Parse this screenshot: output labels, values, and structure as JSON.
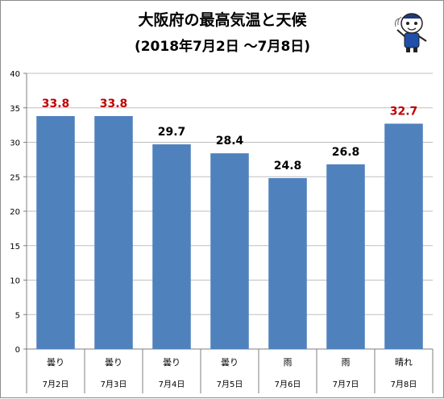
{
  "chart_data": {
    "type": "bar",
    "title": "大阪府の最高気温と天候",
    "subtitle": "(2018年7月2日 〜7月8日)",
    "categories": [
      "7月2日",
      "7月3日",
      "7月4日",
      "7月5日",
      "7月6日",
      "7月7日",
      "7月8日"
    ],
    "weather": [
      "曇り",
      "曇り",
      "曇り",
      "曇り",
      "雨",
      "雨",
      "晴れ"
    ],
    "values": [
      33.8,
      33.8,
      29.7,
      28.4,
      24.8,
      26.8,
      32.7
    ],
    "value_labels": [
      "33.8",
      "33.8",
      "29.7",
      "28.4",
      "24.8",
      "26.8",
      "32.7"
    ],
    "label_colors": [
      "#c00000",
      "#c00000",
      "#000000",
      "#000000",
      "#000000",
      "#000000",
      "#c00000"
    ],
    "ylim": [
      0,
      40
    ],
    "yticks": [
      "0",
      "5",
      "10",
      "15",
      "20",
      "25",
      "30",
      "35",
      "40"
    ],
    "grid": true,
    "legend": "none",
    "bar_color": "#4f81bd",
    "grid_color": "#bfbfbf"
  }
}
